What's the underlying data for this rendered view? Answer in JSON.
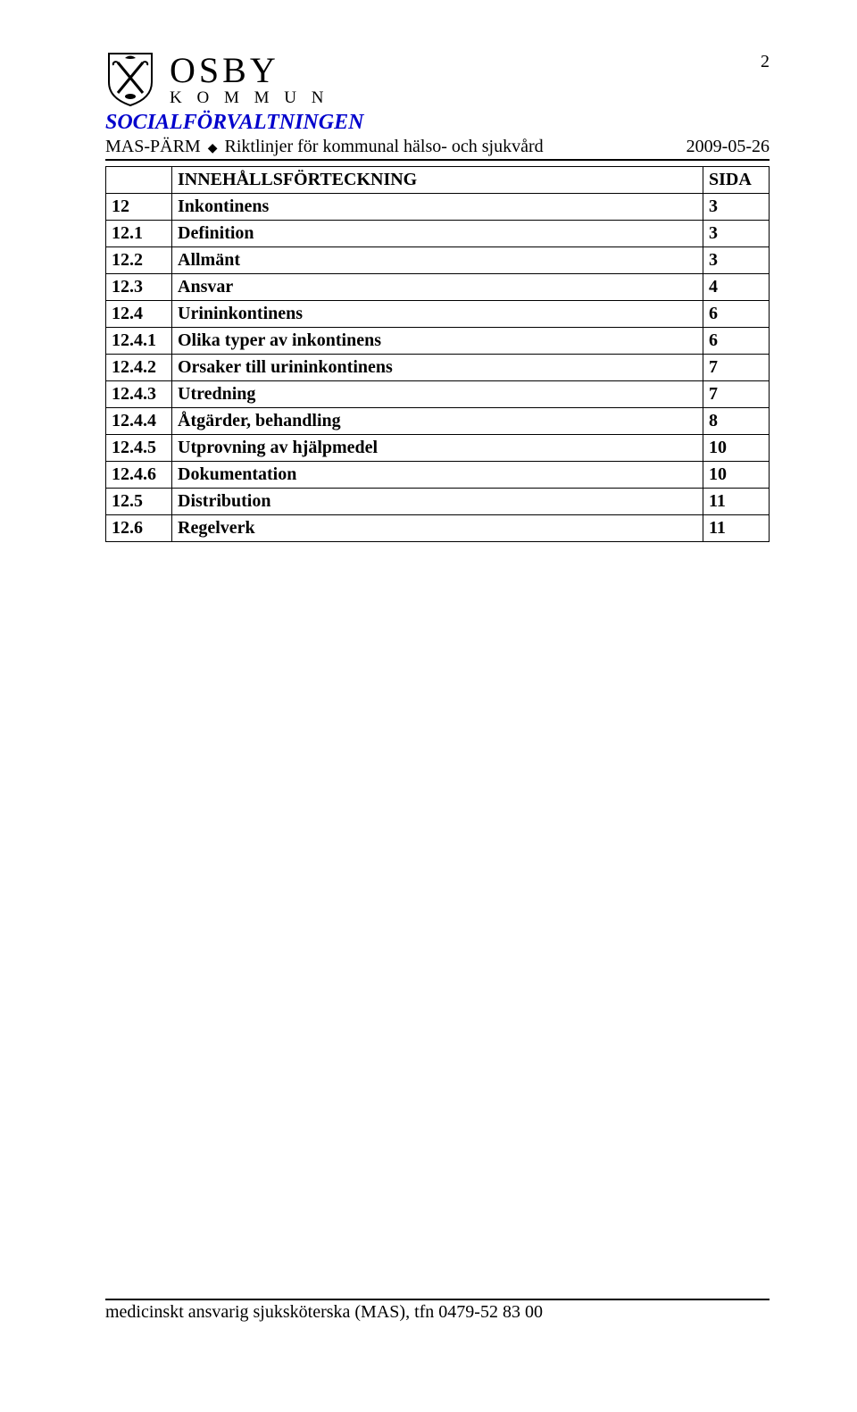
{
  "page_number": "2",
  "org": {
    "name": "OSBY",
    "sub": "K O M M U N"
  },
  "dept": "SOCIALFÖRVALTNINGEN",
  "subhead_left_a": "MAS-PÄRM",
  "subhead_left_b": "Riktlinjer för kommunal hälso- och sjukvård",
  "subhead_date": "2009-05-26",
  "toc_header_title": "INNEHÅLLSFÖRTECKNING",
  "toc_header_page": "SIDA",
  "toc": [
    {
      "num": "12",
      "title": "Inkontinens",
      "page": "3"
    },
    {
      "num": "12.1",
      "title": "Definition",
      "page": "3"
    },
    {
      "num": "12.2",
      "title": "Allmänt",
      "page": "3"
    },
    {
      "num": "12.3",
      "title": "Ansvar",
      "page": "4"
    },
    {
      "num": "12.4",
      "title": "Urininkontinens",
      "page": "6"
    },
    {
      "num": "12.4.1",
      "title": "Olika typer av inkontinens",
      "page": "6"
    },
    {
      "num": "12.4.2",
      "title": "Orsaker till urininkontinens",
      "page": "7"
    },
    {
      "num": "12.4.3",
      "title": "Utredning",
      "page": "7"
    },
    {
      "num": "12.4.4",
      "title": "Åtgärder, behandling",
      "page": "8"
    },
    {
      "num": "12.4.5",
      "title": "Utprovning av hjälpmedel",
      "page": "10"
    },
    {
      "num": "12.4.6",
      "title": "Dokumentation",
      "page": "10"
    },
    {
      "num": "12.5",
      "title": "Distribution",
      "page": "11"
    },
    {
      "num": "12.6",
      "title": "Regelverk",
      "page": "11"
    }
  ],
  "footer": "medicinskt ansvarig sjuksköterska (MAS), tfn 0479-52 83 00"
}
